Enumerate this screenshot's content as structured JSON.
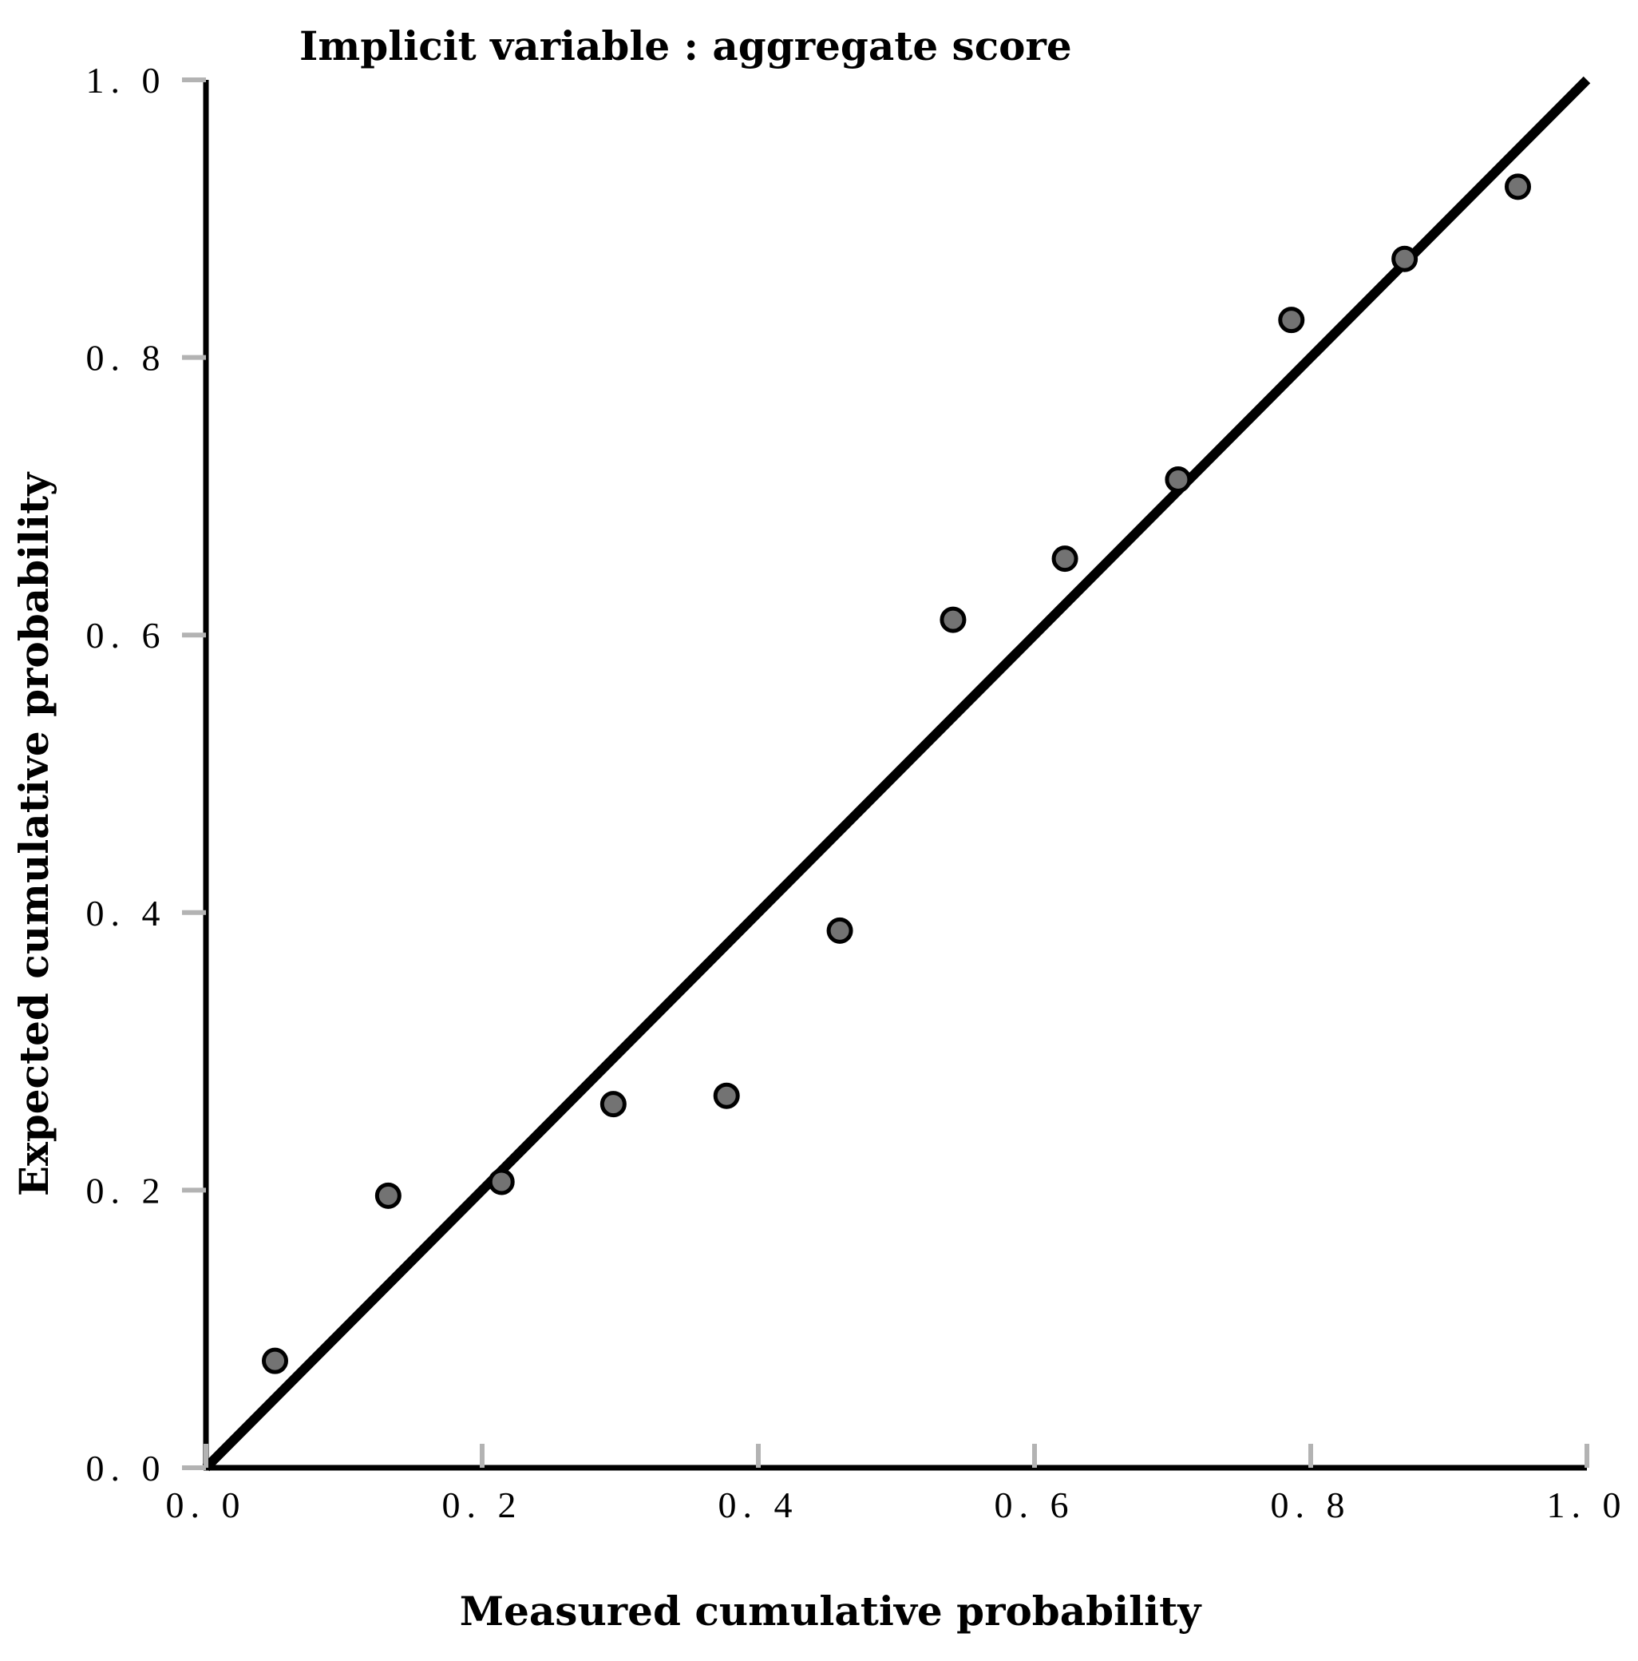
{
  "chart_data": {
    "type": "scatter",
    "title": "Implicit variable :   aggregate score",
    "xlabel": "Measured cumulative probability",
    "ylabel": "Expected cumulative probability",
    "xlim": [
      0.0,
      1.0
    ],
    "ylim": [
      0.0,
      1.0
    ],
    "xticks": [
      "0. 0",
      "0. 2",
      "0. 4",
      "0. 6",
      "0. 8",
      "1. 0"
    ],
    "yticks": [
      "0. 0",
      "0. 2",
      "0. 4",
      "0. 6",
      "0. 8",
      "1. 0"
    ],
    "xtick_values": [
      0.0,
      0.2,
      0.4,
      0.6,
      0.8,
      1.0
    ],
    "ytick_values": [
      0.0,
      0.2,
      0.4,
      0.6,
      0.8,
      1.0
    ],
    "grid": false,
    "reference_line": {
      "x": [
        0.0,
        1.0
      ],
      "y": [
        0.0,
        1.0
      ]
    },
    "series": [
      {
        "name": "aggregate score",
        "x": [
          0.05,
          0.132,
          0.214,
          0.295,
          0.377,
          0.459,
          0.541,
          0.622,
          0.704,
          0.786,
          0.868,
          0.95
        ],
        "y": [
          0.077,
          0.196,
          0.206,
          0.262,
          0.268,
          0.387,
          0.611,
          0.655,
          0.712,
          0.827,
          0.871,
          0.923
        ]
      }
    ]
  }
}
